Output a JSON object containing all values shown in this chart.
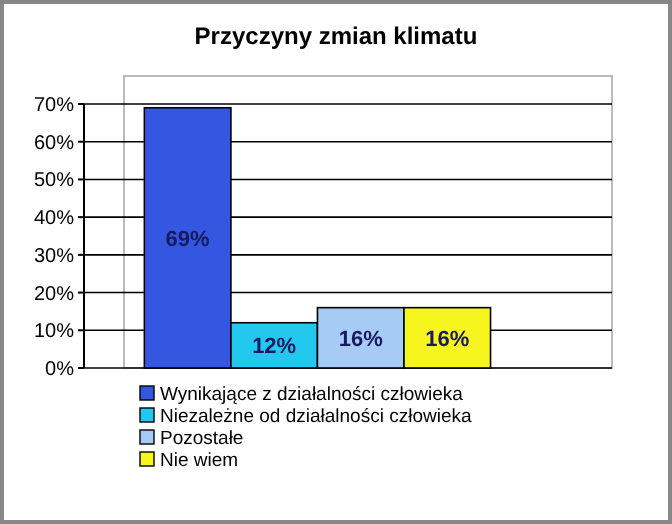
{
  "chart_data": {
    "type": "bar",
    "title": "Przyczyny zmian klimatu",
    "categories": [
      null
    ],
    "series": [
      {
        "name": "Wynikające z działalności człowieka",
        "color": "#3357e0",
        "values": [
          69
        ],
        "value_labels": [
          "69%"
        ]
      },
      {
        "name": "Niezależne od działalności człowieka",
        "color": "#22c8ee",
        "values": [
          12
        ],
        "value_labels": [
          "12%"
        ]
      },
      {
        "name": "Pozostałe",
        "color": "#a6ccf6",
        "values": [
          16
        ],
        "value_labels": [
          "16%"
        ]
      },
      {
        "name": "Nie wiem",
        "color": "#f6f61e",
        "values": [
          16
        ],
        "value_labels": [
          "16%"
        ]
      }
    ],
    "ylim": [
      0,
      70
    ],
    "yticks": [
      {
        "value": 0,
        "label": "0%"
      },
      {
        "value": 10,
        "label": "10%"
      },
      {
        "value": 20,
        "label": "20%"
      },
      {
        "value": 30,
        "label": "30%"
      },
      {
        "value": 40,
        "label": "40%"
      },
      {
        "value": 50,
        "label": "50%"
      },
      {
        "value": 60,
        "label": "60%"
      },
      {
        "value": 70,
        "label": "70%"
      }
    ],
    "grid": "y",
    "legend": "bottom",
    "tick_labels": "y"
  }
}
